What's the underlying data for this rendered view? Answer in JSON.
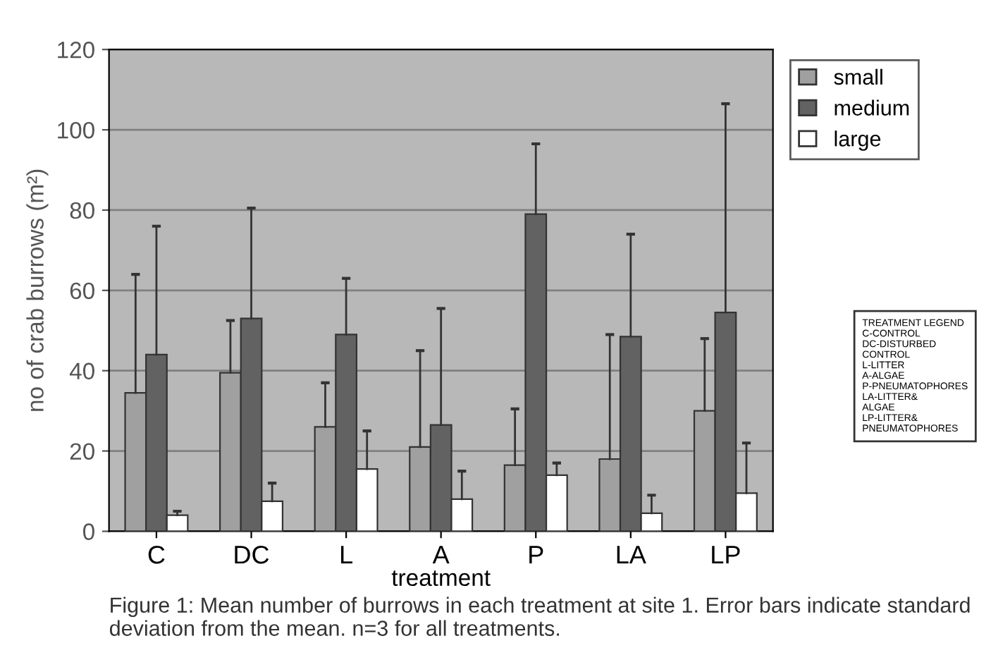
{
  "chart_data": {
    "type": "bar",
    "xlabel": "treatment",
    "ylabel": "no of crab burrows (m²)",
    "categories": [
      "C",
      "DC",
      "L",
      "A",
      "P",
      "LA",
      "LP"
    ],
    "series": [
      {
        "name": "small",
        "color": "#a0a0a0",
        "values": [
          34.5,
          39.5,
          26,
          21,
          16.5,
          18,
          30
        ],
        "errors": [
          [
            34.5,
            64
          ],
          [
            39.5,
            52.5
          ],
          [
            26,
            37
          ],
          [
            21,
            45
          ],
          [
            16.5,
            30.5
          ],
          [
            18,
            49
          ],
          [
            30,
            48
          ]
        ]
      },
      {
        "name": "medium",
        "color": "#626262",
        "values": [
          44,
          53,
          49,
          26.5,
          79,
          48.5,
          54.5
        ],
        "errors": [
          [
            44,
            76
          ],
          [
            53,
            80.5
          ],
          [
            49,
            63
          ],
          [
            26.5,
            55.5
          ],
          [
            79,
            96.5
          ],
          [
            48.5,
            74
          ],
          [
            54.5,
            106.5
          ]
        ]
      },
      {
        "name": "large",
        "color": "#ffffff",
        "values": [
          4,
          7.5,
          15.5,
          8,
          14,
          4.5,
          9.5
        ],
        "errors": [
          [
            4,
            5
          ],
          [
            7.5,
            12
          ],
          [
            15.5,
            25
          ],
          [
            8,
            15
          ],
          [
            14,
            17
          ],
          [
            4.5,
            9
          ],
          [
            9.5,
            22
          ]
        ]
      }
    ],
    "ylim": [
      0,
      120
    ],
    "yticks": [
      0,
      20,
      40,
      60,
      80,
      100,
      120
    ],
    "grid": "y",
    "legend": "top right",
    "annotations": [
      "TREATMENT LEGEND\nC-CONTROL\nDC-DISTURBED\nCONTROL\nL-LITTER\nA-ALGAE\nP-PNEUMATOPHORES\nLA-LITTER&\nALGAE\nLP-LITTER&\nPNEUMATOPHORES",
      "Figure 1: Mean number of burrows in each treatment at site 1. Error bars indicate standard deviation from the mean. n=3 for all treatments."
    ]
  }
}
